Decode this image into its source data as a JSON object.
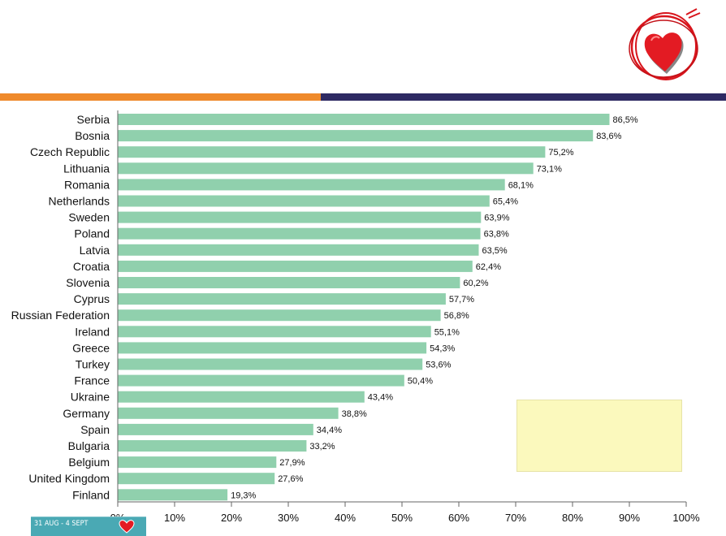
{
  "colors": {
    "bar": "#90d0ad",
    "orange": "#ef8a2b",
    "navy": "#2e2a63",
    "legend_fill": "#fbf9bd",
    "heart_red": "#d8151c"
  },
  "icons": {
    "logo": "heart-icon",
    "footer_heart": "heart-icon"
  },
  "footer": {
    "thumb_text": "31 AUG - 4 SEPT"
  },
  "chart_data": {
    "type": "bar",
    "orientation": "horizontal",
    "categories": [
      "Serbia",
      "Bosnia",
      "Czech Republic",
      "Lithuania",
      "Romania",
      "Netherlands",
      "Sweden",
      "Poland",
      "Latvia",
      "Croatia",
      "Slovenia",
      "Cyprus",
      "Russian Federation",
      "Ireland",
      "Greece",
      "Turkey",
      "France",
      "Ukraine",
      "Germany",
      "Spain",
      "Bulgaria",
      "Belgium",
      "United Kingdom",
      "Finland"
    ],
    "values": [
      86.5,
      83.6,
      75.2,
      73.1,
      68.1,
      65.4,
      63.9,
      63.8,
      63.5,
      62.4,
      60.2,
      57.7,
      56.8,
      55.1,
      54.3,
      53.6,
      50.4,
      43.4,
      38.8,
      34.4,
      33.2,
      27.9,
      27.6,
      19.3
    ],
    "value_labels": [
      "86,5%",
      "83,6%",
      "75,2%",
      "73,1%",
      "68,1%",
      "65,4%",
      "63,9%",
      "63,8%",
      "63,5%",
      "62,4%",
      "60,2%",
      "57,7%",
      "56,8%",
      "55,1%",
      "54,3%",
      "53,6%",
      "50,4%",
      "43,4%",
      "38,8%",
      "34,4%",
      "33,2%",
      "27,9%",
      "27,6%",
      "19,3%"
    ],
    "ticks": [
      "0%",
      "10%",
      "20%",
      "30%",
      "40%",
      "50%",
      "60%",
      "70%",
      "80%",
      "90%",
      "100%"
    ],
    "xlim": [
      0,
      100
    ],
    "grid": false
  }
}
